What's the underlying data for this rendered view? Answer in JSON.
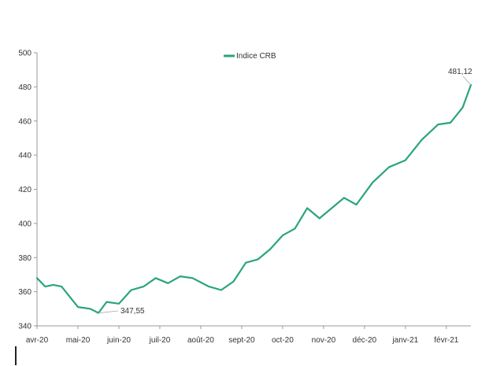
{
  "chart_data": {
    "type": "line",
    "title": "",
    "xlabel": "",
    "ylabel": "",
    "ylim": [
      340,
      500
    ],
    "yticks": [
      340,
      360,
      380,
      400,
      420,
      440,
      460,
      480,
      500
    ],
    "x_tick_labels": [
      "avr-20",
      "mai-20",
      "juin-20",
      "juil-20",
      "août-20",
      "sept-20",
      "oct-20",
      "nov-20",
      "déc-20",
      "janv-21",
      "févr-21"
    ],
    "legend_position": "top-center",
    "grid": false,
    "series": [
      {
        "name": "Indice CRB",
        "color": "#2aa57a",
        "x": [
          0,
          0.2,
          0.4,
          0.6,
          0.8,
          1.0,
          1.3,
          1.5,
          1.7,
          2.0,
          2.3,
          2.6,
          2.9,
          3.2,
          3.5,
          3.8,
          4.2,
          4.5,
          4.8,
          5.1,
          5.4,
          5.7,
          6.0,
          6.3,
          6.6,
          6.9,
          7.2,
          7.5,
          7.8,
          8.2,
          8.6,
          9.0,
          9.4,
          9.8,
          10.1,
          10.4,
          10.6
        ],
        "y": [
          368,
          363,
          364,
          363,
          357,
          351,
          350,
          347.55,
          354,
          353,
          361,
          363,
          368,
          365,
          369,
          368,
          363,
          361,
          366,
          377,
          379,
          385,
          393,
          397,
          409,
          403,
          409,
          415,
          411,
          424,
          433,
          437,
          449,
          458,
          459,
          468,
          481.12
        ]
      }
    ],
    "annotations": [
      {
        "label": "347,55",
        "x": 1.5,
        "y": 347.55
      },
      {
        "label": "481,12",
        "x": 10.6,
        "y": 481.12
      }
    ]
  }
}
